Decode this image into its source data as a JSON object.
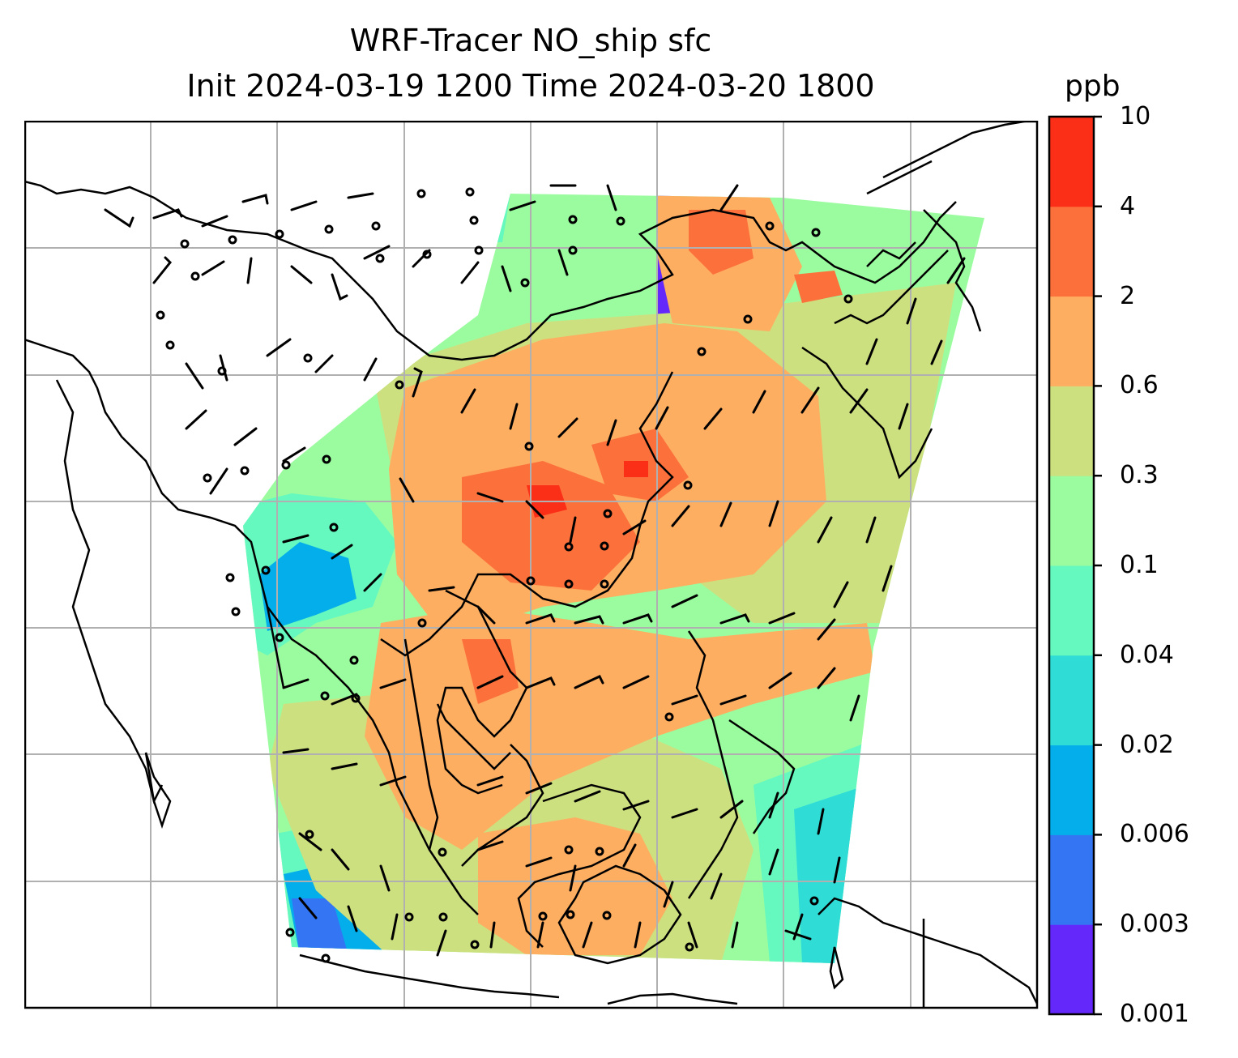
{
  "title": {
    "line1": "WRF-Tracer NO_ship sfc",
    "line2": "Init 2024-03-19 1200 Time 2024-03-20 1800"
  },
  "colorbar": {
    "unit": "ppb",
    "levels": [
      "0.001",
      "0.003",
      "0.006",
      "0.02",
      "0.04",
      "0.1",
      "0.3",
      "0.6",
      "2",
      "4",
      "10"
    ],
    "colors": [
      "#6428fa",
      "#3475f4",
      "#04aeea",
      "#2fdcd6",
      "#66f9bf",
      "#9bfc9f",
      "#cde07f",
      "#fdae61",
      "#fc703b",
      "#fb2e17"
    ]
  },
  "map": {
    "gridlines": true,
    "coastline_color": "#000000",
    "gridline_color": "#b0b0b0",
    "field_type": "shaded concentration with wind barbs"
  }
}
